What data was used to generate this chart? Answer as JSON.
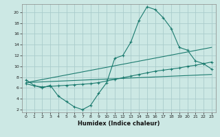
{
  "xlabel": "Humidex (Indice chaleur)",
  "ylabel": "",
  "bg_color": "#cce8e4",
  "grid_color": "#aacccc",
  "line_color": "#1a7a6e",
  "xlim": [
    -0.5,
    23.5
  ],
  "ylim": [
    1.5,
    21.5
  ],
  "xticks": [
    0,
    1,
    2,
    3,
    4,
    5,
    6,
    7,
    8,
    9,
    10,
    11,
    12,
    13,
    14,
    15,
    16,
    17,
    18,
    19,
    20,
    21,
    22,
    23
  ],
  "yticks": [
    2,
    4,
    6,
    8,
    10,
    12,
    14,
    16,
    18,
    20
  ],
  "series1_x": [
    0,
    1,
    2,
    3,
    4,
    5,
    6,
    7,
    8,
    9,
    10,
    11,
    12,
    13,
    14,
    15,
    16,
    17,
    18,
    19,
    20,
    21,
    22,
    23
  ],
  "series1_y": [
    7.5,
    6.5,
    6.0,
    6.5,
    4.5,
    3.5,
    2.5,
    2.0,
    2.8,
    5.0,
    7.0,
    11.5,
    12.0,
    14.5,
    18.5,
    21.0,
    20.5,
    19.0,
    17.0,
    13.5,
    13.0,
    11.0,
    10.5,
    9.5
  ],
  "series2_x": [
    0,
    1,
    2,
    3,
    4,
    5,
    6,
    7,
    8,
    9,
    10,
    11,
    12,
    13,
    14,
    15,
    16,
    17,
    18,
    19,
    20,
    21,
    22,
    23
  ],
  "series2_y": [
    6.8,
    6.4,
    6.2,
    6.3,
    6.4,
    6.5,
    6.6,
    6.7,
    6.8,
    7.0,
    7.3,
    7.6,
    7.9,
    8.2,
    8.5,
    8.8,
    9.1,
    9.3,
    9.5,
    9.7,
    10.0,
    10.2,
    10.5,
    10.8
  ],
  "series3_x": [
    0,
    23
  ],
  "series3_y": [
    7.0,
    13.5
  ],
  "series4_x": [
    0,
    23
  ],
  "series4_y": [
    7.0,
    8.5
  ]
}
